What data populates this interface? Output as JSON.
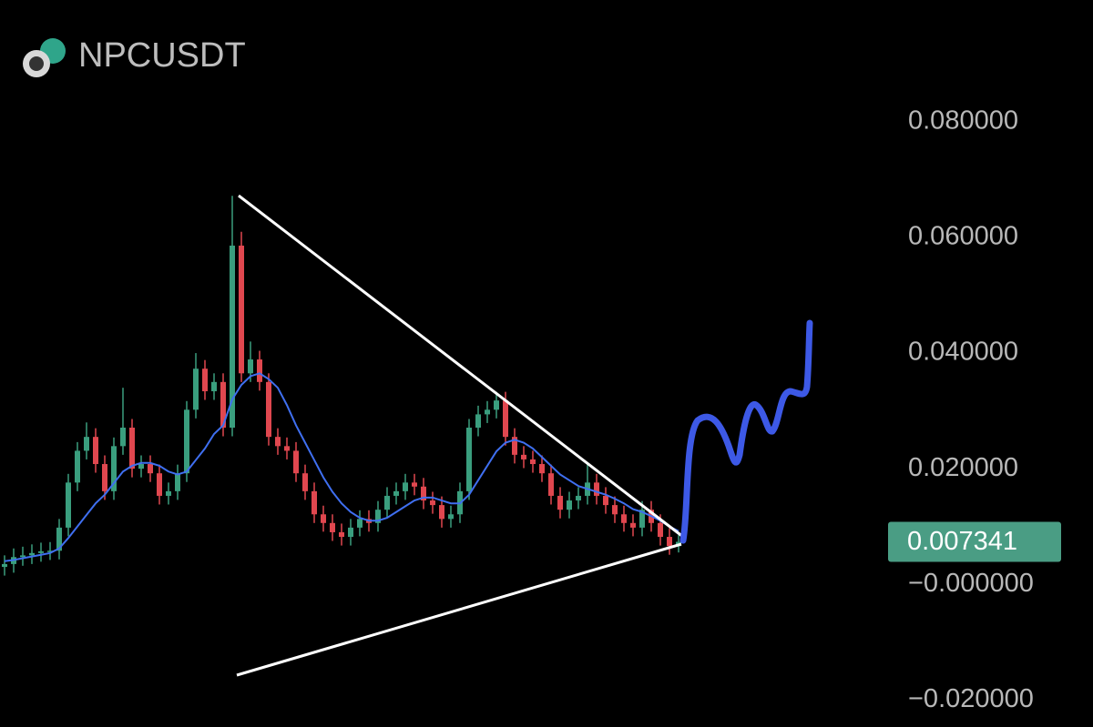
{
  "chart_data": {
    "type": "candlestick",
    "title": "NPCUSDT",
    "open": [
      0.003,
      0.0035,
      0.0047,
      0.005,
      0.0054,
      0.0057,
      0.0058,
      0.0098,
      0.0176,
      0.0231,
      0.0255,
      0.0208,
      0.0161,
      0.0239,
      0.0271,
      0.02,
      0.0208,
      0.0192,
      0.0153,
      0.0161,
      0.0192,
      0.0302,
      0.0373,
      0.0334,
      0.035,
      0.0271,
      0.0586,
      0.0365,
      0.0389,
      0.035,
      0.0255,
      0.0239,
      0.0231,
      0.0192,
      0.0161,
      0.0121,
      0.0106,
      0.009,
      0.0082,
      0.0098,
      0.0113,
      0.0106,
      0.0129,
      0.0153,
      0.0161,
      0.0176,
      0.0169,
      0.0145,
      0.0137,
      0.0113,
      0.0121,
      0.0161,
      0.0271,
      0.0294,
      0.0302,
      0.0318,
      0.0255,
      0.0224,
      0.0216,
      0.0208,
      0.0192,
      0.0153,
      0.0129,
      0.0145,
      0.0153,
      0.0176,
      0.0153,
      0.0137,
      0.0121,
      0.0106,
      0.0098,
      0.0129,
      0.0106,
      0.0082,
      0.0066
    ],
    "high": [
      0.005,
      0.0062,
      0.0065,
      0.0069,
      0.0072,
      0.0073,
      0.0113,
      0.0191,
      0.0246,
      0.028,
      0.027,
      0.0223,
      0.0254,
      0.034,
      0.0286,
      0.0223,
      0.0223,
      0.0207,
      0.0176,
      0.0207,
      0.0317,
      0.04,
      0.0388,
      0.0365,
      0.0365,
      0.0672,
      0.061,
      0.042,
      0.0404,
      0.0365,
      0.027,
      0.0254,
      0.0246,
      0.0207,
      0.0176,
      0.0136,
      0.0121,
      0.0105,
      0.0113,
      0.0128,
      0.0128,
      0.0144,
      0.0168,
      0.0176,
      0.0191,
      0.0191,
      0.0184,
      0.016,
      0.0152,
      0.0136,
      0.0176,
      0.0286,
      0.0309,
      0.0317,
      0.0333,
      0.0333,
      0.027,
      0.0239,
      0.0231,
      0.0223,
      0.0207,
      0.0168,
      0.016,
      0.0168,
      0.021,
      0.0191,
      0.0168,
      0.0152,
      0.0136,
      0.0121,
      0.0144,
      0.0144,
      0.0121,
      0.0097,
      0.0085
    ],
    "low": [
      0.0015,
      0.002,
      0.0032,
      0.0035,
      0.0039,
      0.0042,
      0.0043,
      0.0083,
      0.0161,
      0.0216,
      0.0193,
      0.0146,
      0.0146,
      0.0224,
      0.0185,
      0.0185,
      0.0177,
      0.0138,
      0.0138,
      0.0146,
      0.0177,
      0.0287,
      0.0319,
      0.0319,
      0.0256,
      0.0256,
      0.035,
      0.035,
      0.0335,
      0.024,
      0.0224,
      0.0216,
      0.0177,
      0.0146,
      0.0106,
      0.0091,
      0.0075,
      0.0067,
      0.0067,
      0.0083,
      0.0091,
      0.0091,
      0.0114,
      0.0138,
      0.0146,
      0.0154,
      0.013,
      0.0122,
      0.0098,
      0.0098,
      0.0106,
      0.0146,
      0.0256,
      0.0279,
      0.0287,
      0.024,
      0.0209,
      0.0201,
      0.0193,
      0.0177,
      0.0138,
      0.0114,
      0.0114,
      0.013,
      0.0138,
      0.0138,
      0.0122,
      0.0106,
      0.0091,
      0.0083,
      0.0083,
      0.0091,
      0.0067,
      0.0051,
      0.0055
    ],
    "close": [
      0.0035,
      0.0047,
      0.005,
      0.0054,
      0.0057,
      0.0058,
      0.0098,
      0.0176,
      0.0231,
      0.0255,
      0.0208,
      0.0161,
      0.0239,
      0.0271,
      0.02,
      0.0208,
      0.0192,
      0.0153,
      0.0161,
      0.0192,
      0.0302,
      0.0373,
      0.0334,
      0.035,
      0.0271,
      0.0586,
      0.0365,
      0.0389,
      0.035,
      0.0255,
      0.0239,
      0.0231,
      0.0192,
      0.0161,
      0.0121,
      0.0106,
      0.009,
      0.0082,
      0.0098,
      0.0113,
      0.0106,
      0.0129,
      0.0153,
      0.0161,
      0.0176,
      0.0169,
      0.0145,
      0.0137,
      0.0113,
      0.0121,
      0.0161,
      0.0271,
      0.0294,
      0.0302,
      0.0318,
      0.0255,
      0.0224,
      0.0216,
      0.0208,
      0.0192,
      0.0153,
      0.0129,
      0.0145,
      0.0153,
      0.0176,
      0.0153,
      0.0137,
      0.0121,
      0.0106,
      0.0098,
      0.0129,
      0.0106,
      0.0082,
      0.0066,
      0.007341
    ],
    "ma": [
      0.004,
      0.0042,
      0.0045,
      0.0048,
      0.0051,
      0.0054,
      0.0062,
      0.008,
      0.01,
      0.012,
      0.014,
      0.0155,
      0.0175,
      0.0195,
      0.0205,
      0.021,
      0.021,
      0.0205,
      0.0195,
      0.019,
      0.0195,
      0.0215,
      0.0235,
      0.026,
      0.0275,
      0.032,
      0.0345,
      0.036,
      0.0365,
      0.0355,
      0.034,
      0.031,
      0.0275,
      0.0245,
      0.0215,
      0.0185,
      0.016,
      0.014,
      0.0125,
      0.0115,
      0.011,
      0.011,
      0.0115,
      0.0125,
      0.0135,
      0.0145,
      0.015,
      0.015,
      0.0145,
      0.014,
      0.014,
      0.0155,
      0.018,
      0.0205,
      0.023,
      0.0245,
      0.025,
      0.0245,
      0.0235,
      0.022,
      0.0205,
      0.019,
      0.018,
      0.017,
      0.0165,
      0.016,
      0.0155,
      0.0148,
      0.014,
      0.013,
      0.0125,
      0.0118,
      0.011,
      0.01,
      0.0092
    ],
    "up_color": "#3a9e7e",
    "down_color": "#e0474f",
    "ma_color": "#3f6ff0",
    "last_price": 0.007341,
    "last_price_color": "#4a9d84",
    "ylim": [
      -0.0247,
      0.1011
    ],
    "yticks": [
      {
        "value": 0.08,
        "label": "0.080000"
      },
      {
        "value": 0.06,
        "label": "0.060000"
      },
      {
        "value": 0.04,
        "label": "0.040000"
      },
      {
        "value": 0.02,
        "label": "0.020000"
      },
      {
        "value": 0,
        "label": "−0.000000"
      },
      {
        "value": -0.02,
        "label": "−0.020000"
      }
    ]
  }
}
